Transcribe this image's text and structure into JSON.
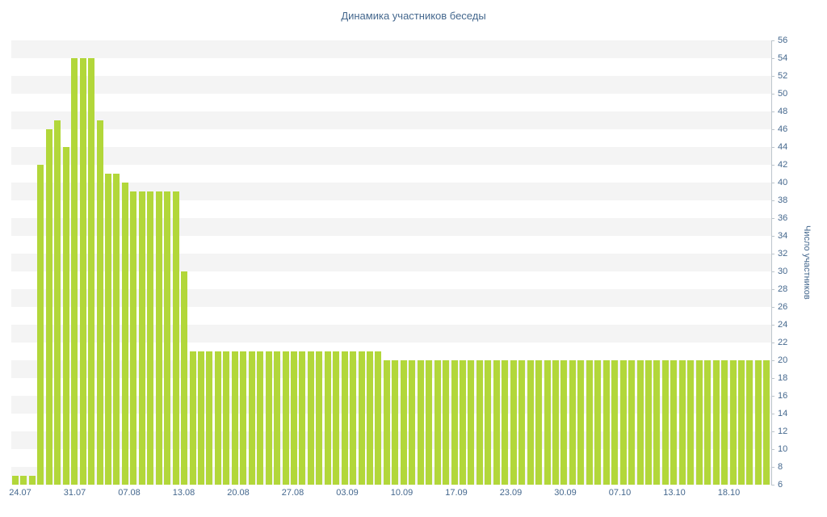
{
  "title": "Динамика участников беседы",
  "colors": {
    "bar": "#b2d73a",
    "axis_text": "#45688e",
    "axis_line": "#bcc5cc",
    "stripe": "#f4f4f4"
  },
  "chart_data": {
    "type": "bar",
    "title": "Динамика участников беседы",
    "xlabel": "",
    "ylabel": "Число участников",
    "ylim": [
      6,
      56
    ],
    "ytick_step": 2,
    "grid": "horizontal-bands",
    "legend": "none",
    "x_labels": [
      "24.07",
      "31.07",
      "07.08",
      "13.08",
      "20.08",
      "27.08",
      "03.09",
      "10.09",
      "17.09",
      "23.09",
      "30.09",
      "07.10",
      "13.10",
      "18.10"
    ],
    "values": [
      7,
      7,
      7,
      42,
      46,
      47,
      44,
      54,
      54,
      54,
      47,
      41,
      41,
      40,
      39,
      39,
      39,
      39,
      39,
      39,
      30,
      21,
      21,
      21,
      21,
      21,
      21,
      21,
      21,
      21,
      21,
      21,
      21,
      21,
      21,
      21,
      21,
      21,
      21,
      21,
      21,
      21,
      21,
      21,
      20,
      20,
      20,
      20,
      20,
      20,
      20,
      20,
      20,
      20,
      20,
      20,
      20,
      20,
      20,
      20,
      20,
      20,
      20,
      20,
      20,
      20,
      20,
      20,
      20,
      20,
      20,
      20,
      20,
      20,
      20,
      20,
      20,
      20,
      20,
      20,
      20,
      20,
      20,
      20,
      20,
      20,
      20,
      20,
      20,
      20
    ]
  }
}
